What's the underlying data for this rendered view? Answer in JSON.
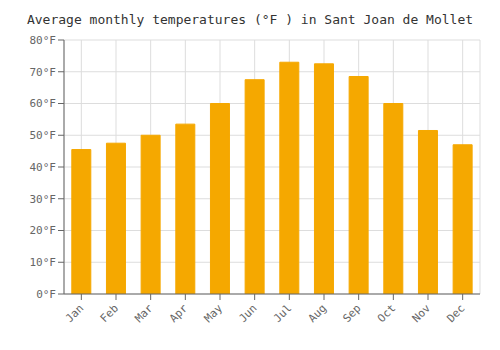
{
  "chart_data": {
    "type": "bar",
    "title": "Average monthly temperatures (°F ) in Sant Joan de Mollet",
    "categories": [
      "Jan",
      "Feb",
      "Mar",
      "Apr",
      "May",
      "Jun",
      "Jul",
      "Aug",
      "Sep",
      "Oct",
      "Nov",
      "Dec"
    ],
    "values": [
      45.5,
      47.5,
      50.0,
      53.5,
      60.0,
      67.5,
      73.0,
      72.5,
      68.5,
      60.0,
      51.5,
      47.0
    ],
    "color": "#F5A800",
    "ylim": [
      0,
      80
    ],
    "yticks": [
      {
        "value": 0,
        "label": "0°F"
      },
      {
        "value": 10,
        "label": "10°F"
      },
      {
        "value": 20,
        "label": "20°F"
      },
      {
        "value": 30,
        "label": "30°F"
      },
      {
        "value": 40,
        "label": "40°F"
      },
      {
        "value": 50,
        "label": "50°F"
      },
      {
        "value": 60,
        "label": "60°F"
      },
      {
        "value": 70,
        "label": "70°F"
      },
      {
        "value": 80,
        "label": "80°F"
      }
    ],
    "grid": true
  }
}
